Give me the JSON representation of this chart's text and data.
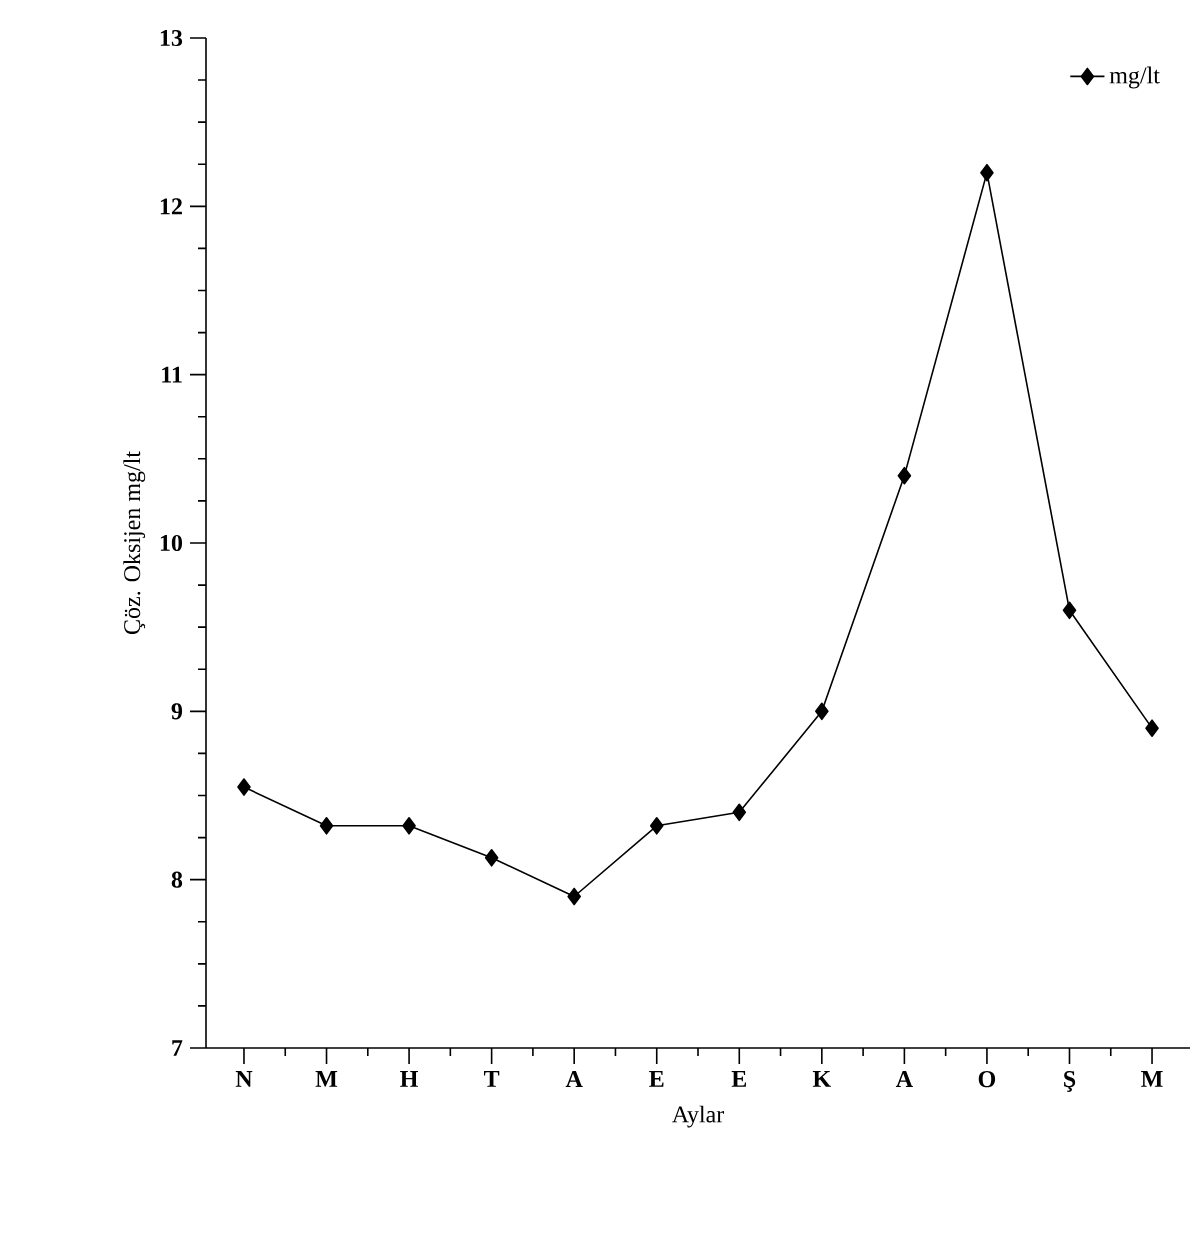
{
  "chart_data": {
    "type": "line",
    "xlabel": "Aylar",
    "ylabel": "Çöz. Oksijen mg/lt",
    "categories": [
      "N",
      "M",
      "H",
      "T",
      "A",
      "E",
      "E",
      "K",
      "A",
      "O",
      "Ş",
      "M"
    ],
    "series": [
      {
        "name": "mg/lt",
        "color": "#000000",
        "values": [
          8.55,
          8.32,
          8.32,
          8.13,
          7.9,
          8.32,
          8.4,
          9.0,
          10.4,
          12.2,
          9.6,
          8.9
        ]
      }
    ],
    "ylim": [
      7,
      13
    ],
    "yticks": [
      7,
      8,
      9,
      10,
      11,
      12,
      13
    ],
    "marker": "diamond",
    "legend": "top right",
    "grid": false
  }
}
